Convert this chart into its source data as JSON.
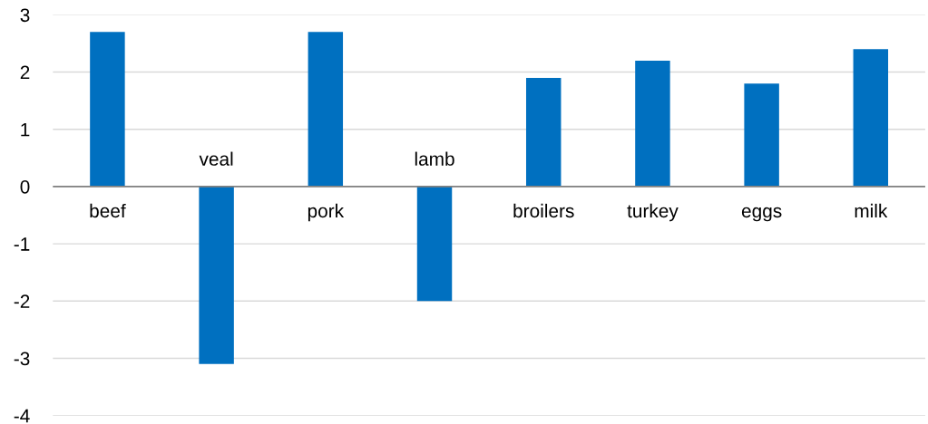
{
  "chart_data": {
    "type": "bar",
    "categories": [
      "beef",
      "veal",
      "pork",
      "lamb",
      "broilers",
      "turkey",
      "eggs",
      "milk"
    ],
    "values": [
      2.7,
      -3.1,
      2.7,
      -2.0,
      1.9,
      2.2,
      1.8,
      2.4
    ],
    "color": "#0070c0",
    "ylim": [
      -4,
      3
    ],
    "yticks": [
      -4,
      -3,
      -2,
      -1,
      0,
      1,
      2,
      3
    ],
    "grid": "y"
  }
}
